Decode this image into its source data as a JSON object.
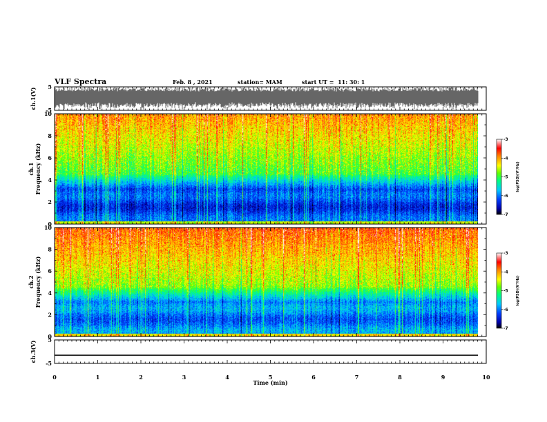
{
  "header": {
    "title": "VLF Spectra",
    "date": "Feb. 8 , 2021",
    "station": "station= MAM",
    "start": "start UT =  11: 30: 1"
  },
  "chart_data": [
    {
      "type": "line",
      "name": "ch1-waveform",
      "ylabel": "ch.1(V)",
      "ylim": [
        -5,
        5
      ],
      "yticks": [
        "5",
        "-5"
      ],
      "xlim": [
        0,
        10
      ]
    },
    {
      "type": "heatmap",
      "name": "ch1-spectrogram",
      "ylabel": "ch.1",
      "ylabel2": "Frequency (kHz)",
      "ylim": [
        0,
        10
      ],
      "yticks": [
        "0",
        "2",
        "4",
        "6",
        "8",
        "10"
      ],
      "xlim": [
        0,
        10
      ],
      "colorbar": {
        "label": "log(PSD)(V²/Hz)",
        "range": [
          -7,
          -3
        ],
        "ticks": [
          "-3",
          "-4",
          "-5",
          "-6",
          "-7"
        ]
      }
    },
    {
      "type": "heatmap",
      "name": "ch2-spectrogram",
      "ylabel": "ch.2",
      "ylabel2": "Frequency (kHz)",
      "ylim": [
        0,
        10
      ],
      "yticks": [
        "0",
        "2",
        "4",
        "6",
        "8",
        "10"
      ],
      "xlim": [
        0,
        10
      ],
      "colorbar": {
        "label": "log(PSD)(V²/Hz)",
        "range": [
          -7,
          -3
        ],
        "ticks": [
          "-3",
          "-4",
          "-5",
          "-6",
          "-7"
        ]
      }
    },
    {
      "type": "line",
      "name": "ch3-waveform",
      "ylabel": "ch.3(V)",
      "ylim": [
        -5,
        5
      ],
      "yticks": [
        "5",
        "-5"
      ],
      "xlim": [
        0,
        10
      ],
      "values": [
        -1.5,
        -1.5
      ]
    }
  ],
  "xaxis": {
    "label": "Time (min)",
    "ticks": [
      "0",
      "1",
      "2",
      "3",
      "4",
      "5",
      "6",
      "7",
      "8",
      "9",
      "10"
    ]
  },
  "colors": {
    "colormap": [
      "#000000",
      "#0000cc",
      "#0050ff",
      "#00c8ff",
      "#00ff80",
      "#80ff00",
      "#ffff00",
      "#ffa000",
      "#ff2000",
      "#ffffff"
    ]
  }
}
